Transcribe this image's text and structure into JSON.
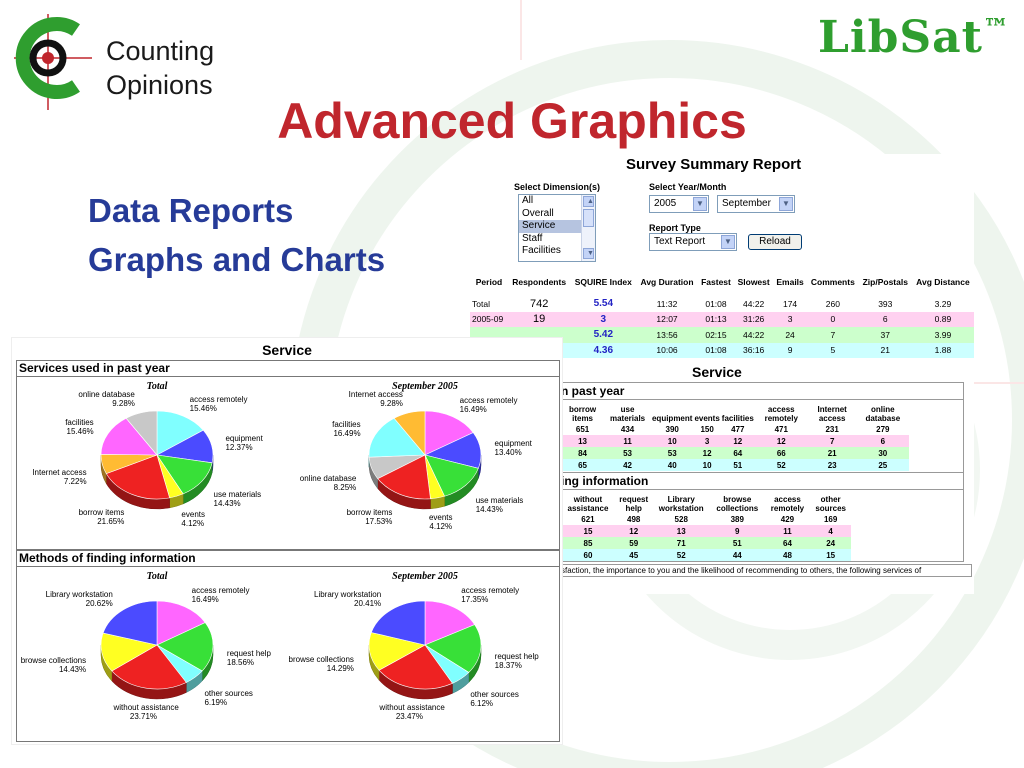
{
  "brand": {
    "logo_line1": "Counting",
    "logo_line2": "Opinions",
    "product": "LibSat",
    "trademark": "™"
  },
  "slide": {
    "title": "Advanced Graphics",
    "bullets": [
      "Data Reports",
      "Graphs and Charts"
    ]
  },
  "colors": {
    "title": "#c0262d",
    "bullets": "#263b98",
    "brand_green": "#2f9e2f"
  },
  "report": {
    "title": "Survey Summary Report",
    "dimension_label": "Select Dimension(s)",
    "dimensions": [
      "All",
      "Overall",
      "Service",
      "Staff",
      "Facilities"
    ],
    "selected_dimension": "Service",
    "year_month_label": "Select Year/Month",
    "year": "2005",
    "month": "September",
    "report_type_label": "Report Type",
    "report_type": "Text Report",
    "reload_label": "Reload",
    "columns": [
      "Period",
      "Respondents",
      "SQUIRE Index",
      "Avg Duration",
      "Fastest",
      "Slowest",
      "Emails",
      "Comments",
      "Zip/Postals",
      "Avg Distance"
    ],
    "rows": [
      {
        "period": "Total",
        "respondents": "742",
        "index": "5.54",
        "avg": "11:32",
        "fastest": "01:08",
        "slowest": "44:22",
        "emails": "174",
        "comments": "260",
        "zip": "393",
        "dist": "3.29"
      },
      {
        "period": "2005-09",
        "respondents": "19",
        "index": "3",
        "avg": "12:07",
        "fastest": "01:13",
        "slowest": "31:26",
        "emails": "3",
        "comments": "0",
        "zip": "6",
        "dist": "0.89"
      },
      {
        "period": "",
        "respondents": "",
        "index": "5.42",
        "avg": "13:56",
        "fastest": "02:15",
        "slowest": "44:22",
        "emails": "24",
        "comments": "7",
        "zip": "37",
        "dist": "3.99"
      },
      {
        "period": "",
        "respondents": "",
        "index": "4.36",
        "avg": "10:06",
        "fastest": "01:08",
        "slowest": "36:16",
        "emails": "9",
        "comments": "5",
        "zip": "21",
        "dist": "1.88"
      }
    ],
    "service_title": "Service",
    "services_head": "n past year",
    "services_cols": [
      "borrow items",
      "use materials",
      "equipment",
      "events",
      "facilities",
      "access remotely",
      "Internet access",
      "online database"
    ],
    "services_rows": [
      [
        "651",
        "434",
        "390",
        "150",
        "477",
        "471",
        "231",
        "279"
      ],
      [
        "13",
        "11",
        "10",
        "3",
        "12",
        "12",
        "7",
        "6"
      ],
      [
        "84",
        "53",
        "53",
        "12",
        "64",
        "66",
        "21",
        "30"
      ],
      [
        "65",
        "42",
        "40",
        "10",
        "51",
        "52",
        "23",
        "25"
      ]
    ],
    "methods_head": "ing information",
    "methods_cols": [
      "without assistance",
      "request help",
      "Library workstation",
      "browse collections",
      "access remotely",
      "other sources"
    ],
    "methods_rows": [
      [
        "621",
        "498",
        "528",
        "389",
        "429",
        "169"
      ],
      [
        "15",
        "12",
        "13",
        "9",
        "11",
        "4"
      ],
      [
        "85",
        "59",
        "71",
        "51",
        "64",
        "24"
      ],
      [
        "60",
        "45",
        "52",
        "44",
        "48",
        "15"
      ]
    ],
    "footnote": "sfaction, the importance to you and the likelihood of recommending to others, the following services of"
  },
  "charts_window": {
    "title": "Service",
    "panel1_title": "Services used in past year",
    "panel2_title": "Methods of finding information"
  },
  "chart_data": [
    {
      "type": "pie",
      "title": "Total",
      "group": "Services used in past year",
      "slices": [
        {
          "label": "access remotely",
          "value": 15.46,
          "color": "#80ffff"
        },
        {
          "label": "equipment",
          "value": 12.37,
          "color": "#4b4bff"
        },
        {
          "label": "use materials",
          "value": 14.43,
          "color": "#38e038"
        },
        {
          "label": "events",
          "value": 4.12,
          "color": "#ffff22"
        },
        {
          "label": "borrow items",
          "value": 21.65,
          "color": "#ee2222"
        },
        {
          "label": "Internet access",
          "value": 7.22,
          "color": "#ffbb33"
        },
        {
          "label": "facilities",
          "value": 15.46,
          "color": "#ff66ff"
        },
        {
          "label": "online database",
          "value": 9.28,
          "color": "#c8c8c8"
        }
      ]
    },
    {
      "type": "pie",
      "title": "September 2005",
      "group": "Services used in past year",
      "slices": [
        {
          "label": "access remotely",
          "value": 16.49,
          "color": "#ff66ff"
        },
        {
          "label": "equipment",
          "value": 13.4,
          "color": "#4b4bff"
        },
        {
          "label": "use materials",
          "value": 14.43,
          "color": "#38e038"
        },
        {
          "label": "events",
          "value": 4.12,
          "color": "#ffff22"
        },
        {
          "label": "borrow items",
          "value": 17.53,
          "color": "#ee2222"
        },
        {
          "label": "online database",
          "value": 8.25,
          "color": "#c8c8c8"
        },
        {
          "label": "facilities",
          "value": 16.49,
          "color": "#80ffff"
        },
        {
          "label": "Internet access",
          "value": 9.28,
          "color": "#ffbb33"
        }
      ]
    },
    {
      "type": "pie",
      "title": "Total",
      "group": "Methods of finding information",
      "slices": [
        {
          "label": "access remotely",
          "value": 16.49,
          "color": "#ff66ff"
        },
        {
          "label": "request help",
          "value": 18.56,
          "color": "#38e038"
        },
        {
          "label": "other sources",
          "value": 6.19,
          "color": "#80ffff"
        },
        {
          "label": "without assistance",
          "value": 23.71,
          "color": "#ee2222"
        },
        {
          "label": "browse collections",
          "value": 14.43,
          "color": "#ffff22"
        },
        {
          "label": "Library workstation",
          "value": 20.62,
          "color": "#4b4bff"
        }
      ]
    },
    {
      "type": "pie",
      "title": "September 2005",
      "group": "Methods of finding information",
      "slices": [
        {
          "label": "access remotely",
          "value": 17.35,
          "color": "#ff66ff"
        },
        {
          "label": "request help",
          "value": 18.37,
          "color": "#38e038"
        },
        {
          "label": "other sources",
          "value": 6.12,
          "color": "#80ffff"
        },
        {
          "label": "without assistance",
          "value": 23.47,
          "color": "#ee2222"
        },
        {
          "label": "browse collections",
          "value": 14.29,
          "color": "#ffff22"
        },
        {
          "label": "Library workstation",
          "value": 20.41,
          "color": "#4b4bff"
        }
      ]
    }
  ]
}
